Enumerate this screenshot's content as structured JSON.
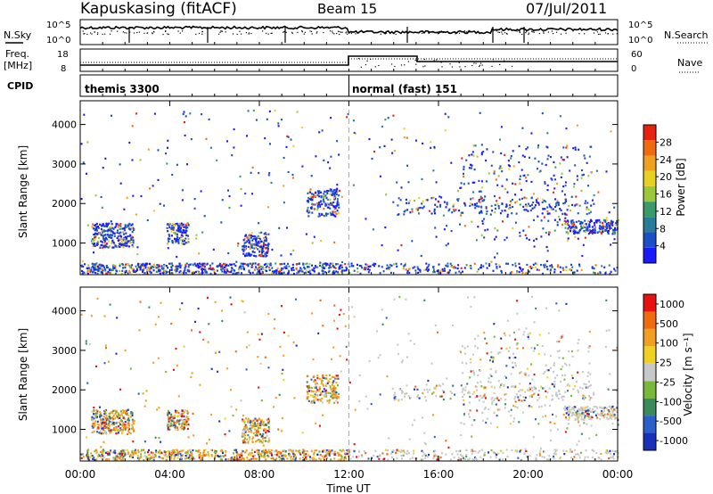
{
  "header": {
    "station": "Kapuskasing (fitACF)",
    "beam": "Beam 15",
    "date": "07/Jul/2011"
  },
  "noise_panel": {
    "left_label": "N.Sky",
    "right_label": "N.Search",
    "ticks_left": [
      "10^5",
      "10^0"
    ],
    "ticks_right": [
      "10^5",
      "10^0"
    ]
  },
  "freq_panel": {
    "left_label_1": "Freq.",
    "left_label_2": "[MHz]",
    "right_label": "Nave",
    "ticks_left": [
      "18",
      "8"
    ],
    "ticks_right": [
      "60",
      "0"
    ]
  },
  "cpid_panel": {
    "label": "CPID",
    "modes": [
      {
        "name": "themis 3300",
        "start": "00:00"
      },
      {
        "name": "normal (fast) 151",
        "start": "12:00"
      }
    ]
  },
  "colors": {
    "power_scale": [
      "#1a1aff",
      "#1a4fc8",
      "#2a7a9a",
      "#3a9a6a",
      "#9ac83a",
      "#e8d020",
      "#f0a020",
      "#f06a10",
      "#e82010"
    ],
    "velocity_scale": [
      "#1c2fb8",
      "#2a60c8",
      "#3a8a5a",
      "#7ab83a",
      "#c8c8c8",
      "#f0d020",
      "#f0a020",
      "#f06a10",
      "#e81010"
    ]
  },
  "chart_data": [
    {
      "type": "heatmap",
      "quantity": "power",
      "ylabel": "Slant Range [km]",
      "yticks": [
        "1000",
        "2000",
        "3000",
        "4000"
      ],
      "ylim": [
        200,
        4600
      ],
      "colorbar_label": "Power [dB]",
      "colorbar_ticks": [
        "4",
        "8",
        "12",
        "16",
        "20",
        "24",
        "28"
      ],
      "zlim": [
        0,
        30
      ]
    },
    {
      "type": "heatmap",
      "quantity": "velocity",
      "ylabel": "Slant Range [km]",
      "yticks": [
        "1000",
        "2000",
        "3000",
        "4000"
      ],
      "ylim": [
        200,
        4600
      ],
      "colorbar_label": "Velocity [m s⁻¹]",
      "colorbar_ticks": [
        "1000",
        "500",
        "100",
        "25",
        "-25",
        "-100",
        "-500",
        "-1000"
      ],
      "zlim": [
        -1000,
        1000
      ]
    }
  ],
  "x_axis": {
    "label": "Time UT",
    "ticks": [
      "00:00",
      "04:00",
      "08:00",
      "12:00",
      "16:00",
      "20:00",
      "00:00"
    ],
    "range_hours": [
      0,
      24
    ]
  }
}
